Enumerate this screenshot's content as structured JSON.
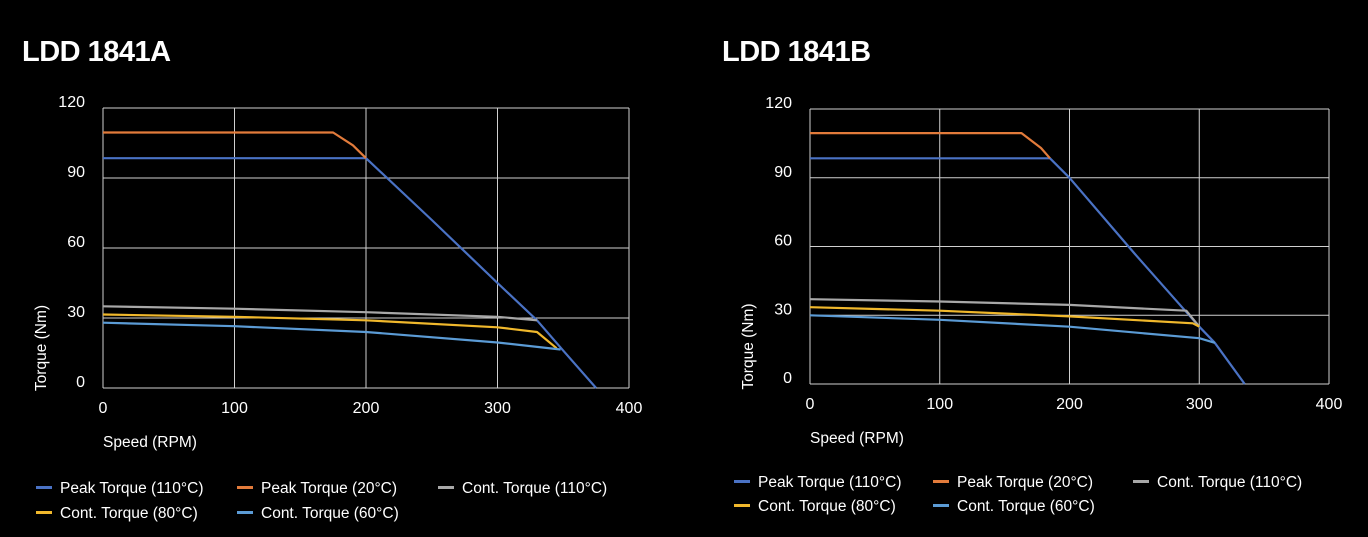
{
  "chart_data": [
    {
      "type": "line",
      "title": "LDD 1841A",
      "xlabel": "Speed (RPM)",
      "ylabel": "Torque (Nm)",
      "xlim": [
        0,
        400
      ],
      "ylim": [
        0,
        120
      ],
      "xticks": [
        0,
        100,
        200,
        300,
        400
      ],
      "yticks": [
        0,
        30,
        60,
        90,
        120
      ],
      "grid": true,
      "legend_position": "bottom",
      "series": [
        {
          "name": "Peak Torque (110°C)",
          "color": "#4a72c4",
          "points": [
            [
              0,
              98.5
            ],
            [
              200,
              98.5
            ],
            [
              250,
              72
            ],
            [
              300,
              45
            ],
            [
              330,
              29
            ],
            [
              350,
              16
            ],
            [
              375,
              0
            ]
          ]
        },
        {
          "name": "Peak Torque (20°C)",
          "color": "#e27b3b",
          "points": [
            [
              0,
              109.5
            ],
            [
              175,
              109.5
            ],
            [
              190,
              104
            ],
            [
              200,
              98.5
            ]
          ]
        },
        {
          "name": "Cont. Torque (110°C)",
          "color": "#a8a8a8",
          "points": [
            [
              0,
              35
            ],
            [
              100,
              34
            ],
            [
              200,
              32.5
            ],
            [
              300,
              30.5
            ],
            [
              330,
              29
            ]
          ]
        },
        {
          "name": "Cont. Torque (80°C)",
          "color": "#f0b82c",
          "points": [
            [
              0,
              31.5
            ],
            [
              100,
              30.5
            ],
            [
              200,
              29
            ],
            [
              300,
              26
            ],
            [
              330,
              24
            ],
            [
              345,
              17
            ]
          ]
        },
        {
          "name": "Cont. Torque (60°C)",
          "color": "#5b9bd5",
          "points": [
            [
              0,
              28
            ],
            [
              100,
              26.5
            ],
            [
              200,
              24
            ],
            [
              300,
              19.5
            ],
            [
              348,
              16.5
            ]
          ]
        }
      ]
    },
    {
      "type": "line",
      "title": "LDD 1841B",
      "xlabel": "Speed (RPM)",
      "ylabel": "Torque (Nm)",
      "xlim": [
        0,
        400
      ],
      "ylim": [
        0,
        120
      ],
      "xticks": [
        0,
        100,
        200,
        300,
        400
      ],
      "yticks": [
        0,
        30,
        60,
        90,
        120
      ],
      "grid": true,
      "legend_position": "bottom",
      "series": [
        {
          "name": "Peak Torque (110°C)",
          "color": "#4a72c4",
          "points": [
            [
              0,
              98.5
            ],
            [
              185,
              98.5
            ],
            [
              200,
              90
            ],
            [
              250,
              57
            ],
            [
              300,
              25
            ],
            [
              312,
              18
            ],
            [
              335,
              0
            ]
          ]
        },
        {
          "name": "Peak Torque (20°C)",
          "color": "#e27b3b",
          "points": [
            [
              0,
              109.5
            ],
            [
              163,
              109.5
            ],
            [
              178,
              103
            ],
            [
              185,
              98.5
            ]
          ]
        },
        {
          "name": "Cont. Torque (110°C)",
          "color": "#a8a8a8",
          "points": [
            [
              0,
              37
            ],
            [
              100,
              36
            ],
            [
              200,
              34.5
            ],
            [
              290,
              32
            ],
            [
              300,
              25
            ]
          ]
        },
        {
          "name": "Cont. Torque (80°C)",
          "color": "#f0b82c",
          "points": [
            [
              0,
              33.5
            ],
            [
              100,
              32
            ],
            [
              200,
              29.5
            ],
            [
              295,
              26.5
            ],
            [
              300,
              25
            ]
          ]
        },
        {
          "name": "Cont. Torque (60°C)",
          "color": "#5b9bd5",
          "points": [
            [
              0,
              30
            ],
            [
              100,
              28
            ],
            [
              200,
              25
            ],
            [
              300,
              20
            ],
            [
              312,
              18
            ]
          ]
        }
      ]
    }
  ]
}
